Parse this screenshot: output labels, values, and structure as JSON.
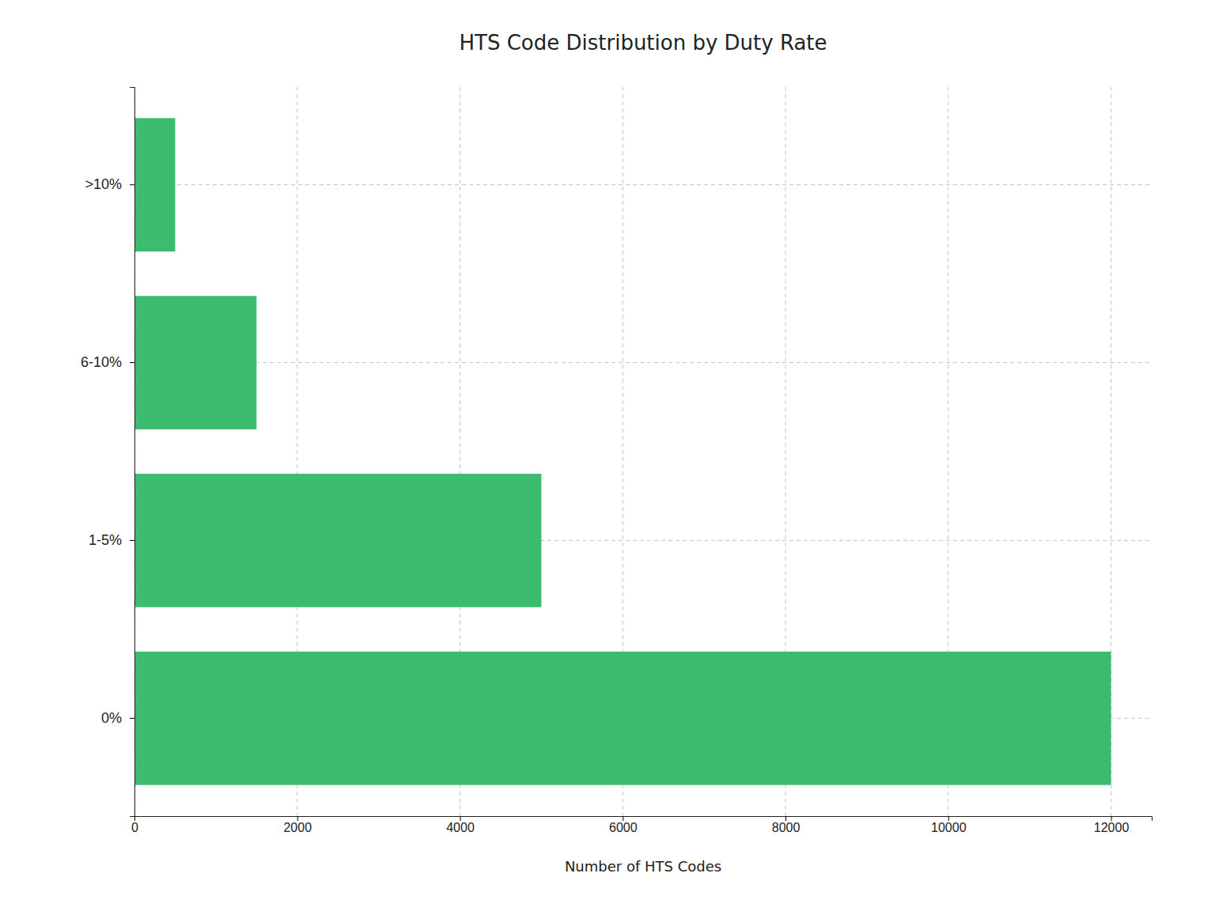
{
  "chart_data": {
    "type": "bar",
    "orientation": "horizontal",
    "title": "HTS Code Distribution by Duty Rate",
    "categories": [
      "0%",
      "1-5%",
      "6-10%",
      ">10%"
    ],
    "values": [
      12000,
      5000,
      1500,
      500
    ],
    "color": "#3dbb6e",
    "xlabel": "Number of HTS Codes",
    "xlim": [
      0,
      12500
    ],
    "xticks": [
      0,
      2000,
      4000,
      6000,
      8000,
      10000,
      12000
    ],
    "grid": true
  }
}
